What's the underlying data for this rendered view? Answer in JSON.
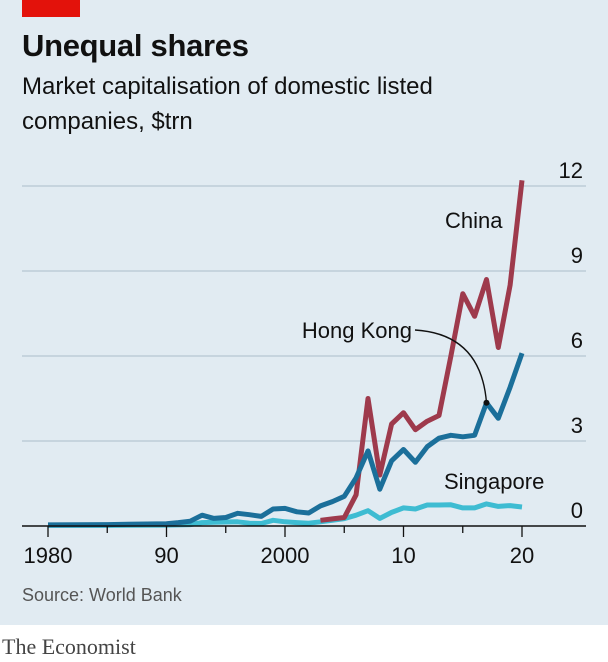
{
  "header": {
    "title": "Unequal shares",
    "subtitle": "Market capitalisation of domestic listed companies, $trn"
  },
  "footer": {
    "source": "Source: World Bank",
    "brand": "The Economist"
  },
  "colors": {
    "background": "#e1ebf2",
    "accent": "#e3120b",
    "china": "#9e3a4c",
    "hong_kong": "#1b6f9a",
    "singapore": "#3ebcd2",
    "gridline": "#b7c6d1",
    "axis": "#111111"
  },
  "chart_data": {
    "type": "line",
    "title": "Unequal shares",
    "subtitle": "Market capitalisation of domestic listed companies, $trn",
    "xlabel": "",
    "ylabel": "$trn",
    "xlim": [
      1980,
      2020
    ],
    "ylim": [
      0,
      12
    ],
    "x_ticks": [
      1980,
      1990,
      2000,
      2010,
      2020
    ],
    "x_tick_labels": [
      "1980",
      "90",
      "2000",
      "10",
      "20"
    ],
    "y_ticks": [
      0,
      3,
      6,
      9,
      12
    ],
    "y_tick_labels": [
      "0",
      "3",
      "6",
      "9",
      "12"
    ],
    "grid": true,
    "y_axis_side": "right",
    "series": [
      {
        "name": "China",
        "label": "China",
        "color": "#9e3a4c",
        "x": [
          2003,
          2004,
          2005,
          2006,
          2007,
          2008,
          2009,
          2010,
          2011,
          2012,
          2013,
          2014,
          2015,
          2016,
          2017,
          2018,
          2019,
          2020
        ],
        "values": [
          0.2,
          0.25,
          0.3,
          1.1,
          4.5,
          1.8,
          3.6,
          4.0,
          3.4,
          3.7,
          3.9,
          6.0,
          8.2,
          7.4,
          8.7,
          6.3,
          8.5,
          12.2
        ]
      },
      {
        "name": "Hong Kong",
        "label": "Hong Kong",
        "color": "#1b6f9a",
        "x": [
          1980,
          1985,
          1990,
          1991,
          1992,
          1993,
          1994,
          1995,
          1996,
          1997,
          1998,
          1999,
          2000,
          2001,
          2002,
          2003,
          2004,
          2005,
          2006,
          2007,
          2008,
          2009,
          2010,
          2011,
          2012,
          2013,
          2014,
          2015,
          2016,
          2017,
          2018,
          2019,
          2020
        ],
        "values": [
          0.04,
          0.05,
          0.08,
          0.12,
          0.17,
          0.38,
          0.27,
          0.3,
          0.45,
          0.4,
          0.34,
          0.6,
          0.62,
          0.5,
          0.46,
          0.71,
          0.86,
          1.05,
          1.7,
          2.65,
          1.3,
          2.3,
          2.7,
          2.25,
          2.8,
          3.1,
          3.2,
          3.15,
          3.2,
          4.35,
          3.8,
          4.9,
          6.1
        ]
      },
      {
        "name": "Singapore",
        "label": "Singapore",
        "color": "#3ebcd2",
        "x": [
          1980,
          1985,
          1990,
          1992,
          1993,
          1994,
          1995,
          1996,
          1997,
          1998,
          1999,
          2000,
          2001,
          2002,
          2003,
          2004,
          2005,
          2006,
          2007,
          2008,
          2009,
          2010,
          2011,
          2012,
          2013,
          2014,
          2015,
          2016,
          2017,
          2018,
          2019,
          2020
        ],
        "values": [
          0.02,
          0.02,
          0.03,
          0.05,
          0.12,
          0.13,
          0.14,
          0.15,
          0.1,
          0.09,
          0.2,
          0.15,
          0.12,
          0.1,
          0.15,
          0.2,
          0.26,
          0.38,
          0.54,
          0.27,
          0.48,
          0.64,
          0.6,
          0.74,
          0.74,
          0.75,
          0.64,
          0.64,
          0.78,
          0.69,
          0.72,
          0.67
        ]
      }
    ],
    "annotations": [
      {
        "text": "China",
        "series": "China",
        "placement": "left of 2020 peak"
      },
      {
        "text": "Hong Kong",
        "series": "Hong Kong",
        "placement": "callout pointing to 2017",
        "pointer_x": 2017,
        "pointer_y": 4.35
      },
      {
        "text": "Singapore",
        "series": "Singapore",
        "placement": "above line near 2014"
      }
    ]
  }
}
